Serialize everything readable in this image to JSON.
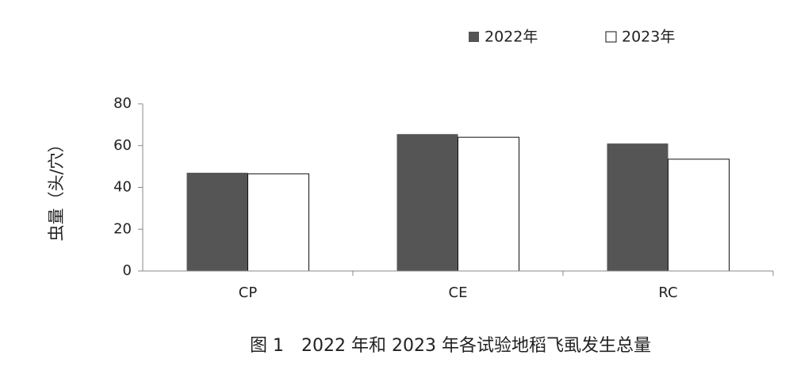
{
  "chart_data": {
    "type": "bar",
    "title": "图 1　2022 年和 2023 年各试验地稻飞虱发生总量",
    "ylabel": "虫量（头/穴）",
    "categories": [
      "CP",
      "CE",
      "RC"
    ],
    "series": [
      {
        "name": "2022年",
        "color": "#555555",
        "values": [
          47,
          65.5,
          61
        ]
      },
      {
        "name": "2023年",
        "color": "#ffffff",
        "values": [
          46.5,
          64,
          53.5
        ]
      }
    ],
    "ylim": [
      0,
      80
    ],
    "yticks": [
      0,
      20,
      40,
      60,
      80
    ],
    "legend": "top-right"
  }
}
